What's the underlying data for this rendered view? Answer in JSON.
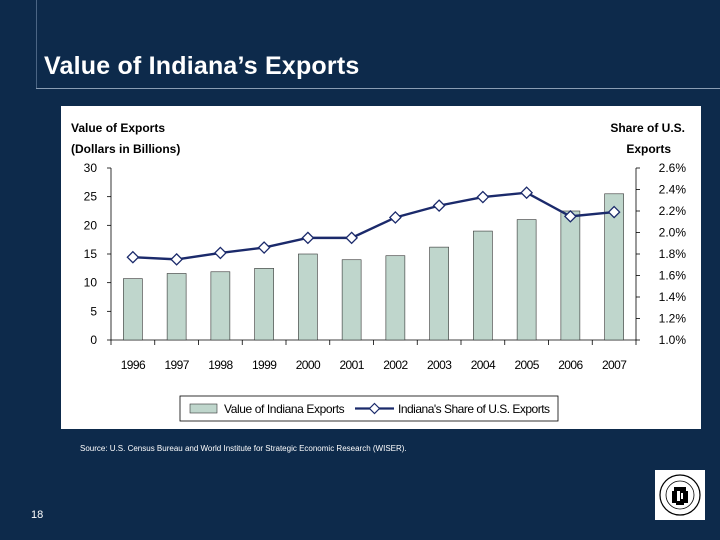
{
  "slide": {
    "title": "Value of Indiana’s Exports",
    "source": "Source:  U.S. Census Bureau and World Institute for Strategic Economic Research (WISER).",
    "page_number": "18"
  },
  "colors": {
    "background": "#0d2a4b",
    "bar_fill": "#bfd6cc",
    "bar_stroke": "#333333",
    "line": "#1b2a6b",
    "marker_fill": "#ffffff"
  },
  "chart_data": {
    "type": "bar",
    "categories": [
      "1996",
      "1997",
      "1998",
      "1999",
      "2000",
      "2001",
      "2002",
      "2003",
      "2004",
      "2005",
      "2006",
      "2007"
    ],
    "left_axis": {
      "label_line1": "Value of Exports",
      "label_line2": "(Dollars in Billions)",
      "ylim": [
        0,
        30
      ],
      "ticks": [
        "0",
        "5",
        "10",
        "15",
        "20",
        "25",
        "30"
      ]
    },
    "right_axis": {
      "label_line1": "Share of U.S.",
      "label_line2": "Exports",
      "ylim": [
        1.0,
        2.6
      ],
      "ticks": [
        "1.0%",
        "1.2%",
        "1.4%",
        "1.6%",
        "1.8%",
        "2.0%",
        "2.2%",
        "2.4%",
        "2.6%"
      ]
    },
    "series": [
      {
        "name": "Value of Indiana Exports",
        "type": "bar",
        "axis": "left",
        "values": [
          10.7,
          11.6,
          11.9,
          12.5,
          15.0,
          14.0,
          14.7,
          16.2,
          19.0,
          21.0,
          22.5,
          25.5
        ]
      },
      {
        "name": "Indiana's Share of U.S. Exports",
        "type": "line",
        "axis": "right",
        "values": [
          1.77,
          1.75,
          1.81,
          1.86,
          1.95,
          1.95,
          2.14,
          2.25,
          2.33,
          2.37,
          2.15,
          2.19
        ]
      }
    ],
    "grid": false,
    "legend_position": "bottom"
  }
}
